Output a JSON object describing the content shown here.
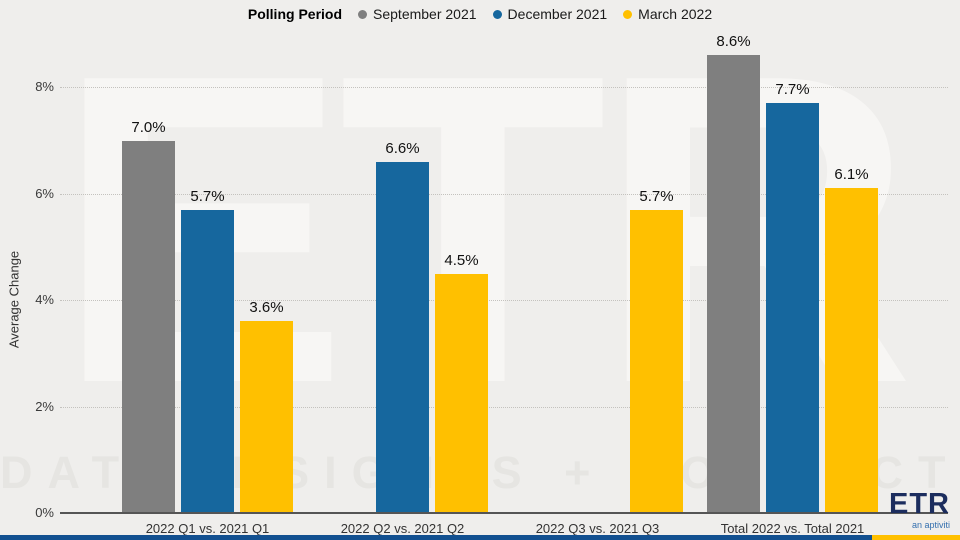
{
  "chart_data": {
    "type": "bar",
    "legend_title": "Polling Period",
    "legend_position": "top",
    "categories": [
      "2022 Q1 vs. 2021 Q1",
      "2022 Q2 vs. 2021 Q2",
      "2022 Q3 vs. 2021 Q3",
      "Total 2022 vs. Total 2021"
    ],
    "series": [
      {
        "name": "September 2021",
        "color": "#7F7F7F",
        "values": [
          7.0,
          null,
          null,
          8.6
        ]
      },
      {
        "name": "December 2021",
        "color": "#16679E",
        "values": [
          5.7,
          6.6,
          null,
          7.7
        ]
      },
      {
        "name": "March 2022",
        "color": "#FFC000",
        "values": [
          3.6,
          4.5,
          5.7,
          6.1
        ]
      }
    ],
    "ylabel": "Average Change",
    "ylim": [
      0,
      8.8
    ],
    "yticks": [
      {
        "value": 0,
        "label": "0%"
      },
      {
        "value": 2,
        "label": "2%"
      },
      {
        "value": 4,
        "label": "4%"
      },
      {
        "value": 6,
        "label": "6%"
      },
      {
        "value": 8,
        "label": "8%"
      }
    ],
    "value_suffix": "%",
    "grid": "horizontal-dotted"
  },
  "watermark": {
    "big_text": "ETR",
    "bottom_text": "DATA INSIGHTS + CONNECT"
  },
  "logo": {
    "text": "ETR",
    "tagline": "an aptiviti"
  },
  "footer_bar": {
    "blue": "#125090",
    "yellow": "#FFC000"
  }
}
